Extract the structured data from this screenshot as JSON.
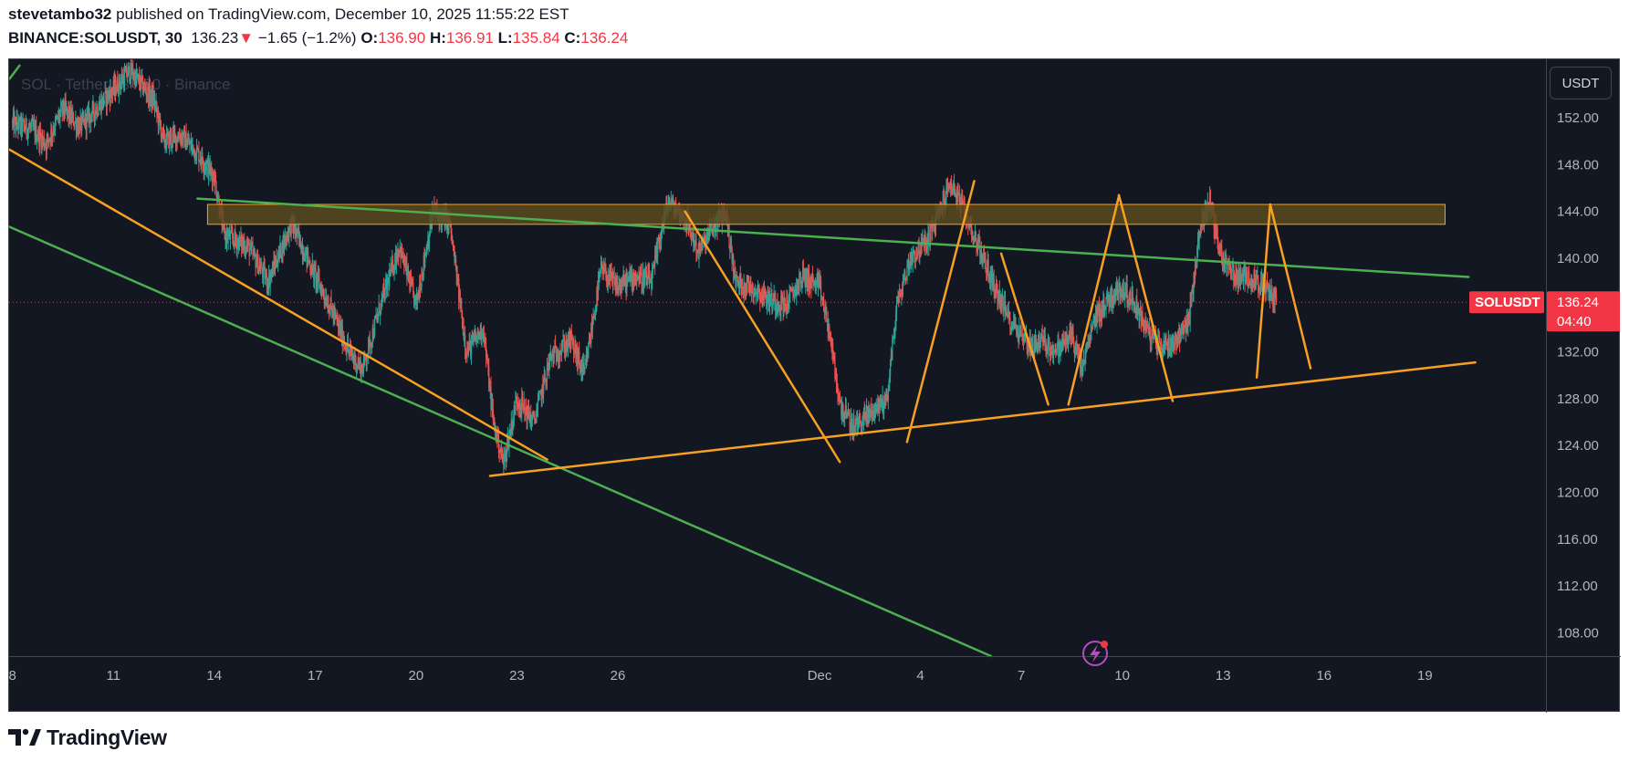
{
  "header": {
    "author": "stevetambo32",
    "published_text": "published on TradingView.com, December 10, 2025 11:55:22 EST",
    "symbol_interval": "BINANCE:SOLUSDT, 30",
    "last": "136.23",
    "change_arrow": "▼",
    "change": "−1.65 (−1.2%)",
    "o_label": "O:",
    "o": "136.90",
    "h_label": "H:",
    "h": "136.91",
    "l_label": "L:",
    "l": "135.84",
    "c_label": "C:",
    "c": "136.24"
  },
  "watermark": "SOL · TetherUS · 30 · Binance",
  "currency_button": "USDT",
  "price_badge": {
    "symbol": "SOLUSDT",
    "price": "136.24",
    "countdown": "04:40"
  },
  "footer": {
    "brand": "TradingView"
  },
  "colors": {
    "bg": "#131722",
    "up": "#26a69a",
    "down": "#ef5350",
    "orange": "#f7a021",
    "green": "#4caf50",
    "zone_fill": "#5a4a1f",
    "zone_stroke": "#f7a021",
    "badge": "#f23645"
  },
  "chart_data": {
    "type": "candlestick",
    "title": "SOL · TetherUS · 30 · Binance",
    "y_ticks": [
      152,
      148,
      144,
      140,
      132,
      128,
      124,
      120,
      116,
      112,
      108
    ],
    "ylim": [
      106,
      157
    ],
    "x_ticks": [
      "8",
      "11",
      "14",
      "17",
      "20",
      "23",
      "26",
      "Dec",
      "4",
      "7",
      "10",
      "13",
      "16",
      "19"
    ],
    "x_tick_days": [
      8,
      11,
      14,
      17,
      20,
      23,
      26,
      32,
      35,
      38,
      41,
      44,
      47,
      50
    ],
    "xlim": [
      7.9,
      53.6
    ],
    "last_price": 136.24,
    "price_path": [
      [
        8.0,
        151.5
      ],
      [
        8.6,
        151.0
      ],
      [
        9.0,
        149.8
      ],
      [
        9.5,
        152.8
      ],
      [
        10.0,
        151.2
      ],
      [
        11.5,
        156.0
      ],
      [
        12.2,
        153.5
      ],
      [
        12.5,
        150.0
      ],
      [
        13.0,
        150.5
      ],
      [
        13.5,
        149.0
      ],
      [
        14.0,
        147.0
      ],
      [
        14.3,
        142.0
      ],
      [
        15.0,
        141.0
      ],
      [
        15.6,
        138.0
      ],
      [
        16.3,
        143.0
      ],
      [
        17.0,
        138.5
      ],
      [
        17.5,
        135.5
      ],
      [
        18.0,
        132.0
      ],
      [
        18.4,
        130.5
      ],
      [
        19.0,
        136.5
      ],
      [
        19.5,
        141.0
      ],
      [
        20.0,
        136.0
      ],
      [
        20.5,
        144.0
      ],
      [
        21.0,
        143.0
      ],
      [
        21.5,
        132.0
      ],
      [
        22.0,
        134.0
      ],
      [
        22.3,
        126.0
      ],
      [
        22.6,
        122.5
      ],
      [
        23.0,
        128.0
      ],
      [
        23.5,
        126.0
      ],
      [
        24.0,
        131.5
      ],
      [
        24.6,
        133.0
      ],
      [
        25.0,
        130.0
      ],
      [
        25.5,
        139.0
      ],
      [
        26.0,
        137.5
      ],
      [
        26.5,
        138.5
      ],
      [
        27.0,
        138.0
      ],
      [
        27.3,
        142.5
      ],
      [
        27.5,
        144.8
      ],
      [
        28.0,
        143.5
      ],
      [
        28.4,
        140.5
      ],
      [
        28.8,
        142.5
      ],
      [
        29.2,
        144.0
      ],
      [
        29.5,
        138.0
      ],
      [
        30.0,
        137.5
      ],
      [
        30.5,
        136.5
      ],
      [
        31.0,
        136.0
      ],
      [
        31.5,
        138.5
      ],
      [
        32.0,
        137.5
      ],
      [
        32.3,
        133.5
      ],
      [
        32.6,
        127.5
      ],
      [
        33.0,
        125.5
      ],
      [
        33.5,
        126.8
      ],
      [
        34.0,
        128.0
      ],
      [
        34.3,
        136.0
      ],
      [
        34.7,
        140.0
      ],
      [
        35.2,
        141.5
      ],
      [
        35.5,
        143.5
      ],
      [
        35.9,
        146.5
      ],
      [
        36.3,
        144.0
      ],
      [
        36.8,
        140.5
      ],
      [
        37.2,
        137.5
      ],
      [
        37.6,
        135.0
      ],
      [
        38.0,
        133.5
      ],
      [
        38.3,
        132.5
      ],
      [
        38.6,
        133.0
      ],
      [
        39.0,
        132.0
      ],
      [
        39.5,
        133.5
      ],
      [
        39.8,
        130.5
      ],
      [
        40.2,
        135.0
      ],
      [
        40.6,
        136.5
      ],
      [
        41.0,
        137.5
      ],
      [
        41.4,
        136.0
      ],
      [
        41.8,
        133.5
      ],
      [
        42.2,
        132.5
      ],
      [
        42.6,
        133.0
      ],
      [
        43.0,
        135.0
      ],
      [
        43.3,
        142.5
      ],
      [
        43.6,
        145.0
      ],
      [
        43.9,
        140.5
      ],
      [
        44.2,
        139.0
      ],
      [
        44.5,
        138.2
      ],
      [
        44.8,
        138.5
      ],
      [
        45.2,
        137.5
      ],
      [
        45.6,
        136.4
      ]
    ],
    "drawings": {
      "resistance_zone": {
        "x": [
          13.8,
          50.6
        ],
        "y": [
          142.9,
          144.6
        ]
      },
      "green_upper": [
        [
          13.5,
          145.1
        ],
        [
          51.3,
          138.4
        ]
      ],
      "green_lower": [
        [
          7.9,
          142.7
        ],
        [
          37.1,
          106.0
        ]
      ],
      "orange_descending": [
        [
          7.9,
          149.3
        ],
        [
          23.9,
          122.8
        ]
      ],
      "orange_support": [
        [
          22.2,
          121.4
        ],
        [
          51.5,
          131.1
        ]
      ],
      "orange_swings": [
        [
          [
            28.0,
            144.0
          ],
          [
            32.6,
            122.6
          ]
        ],
        [
          [
            34.6,
            124.3
          ],
          [
            36.6,
            146.6
          ]
        ],
        [
          [
            37.4,
            140.4
          ],
          [
            38.8,
            127.5
          ]
        ],
        [
          [
            39.4,
            127.5
          ],
          [
            40.9,
            145.3
          ]
        ],
        [
          [
            40.9,
            145.4
          ],
          [
            42.5,
            127.8
          ]
        ],
        [
          [
            45.0,
            129.8
          ],
          [
            45.4,
            144.6
          ]
        ],
        [
          [
            45.4,
            144.6
          ],
          [
            46.6,
            130.6
          ]
        ]
      ]
    }
  }
}
